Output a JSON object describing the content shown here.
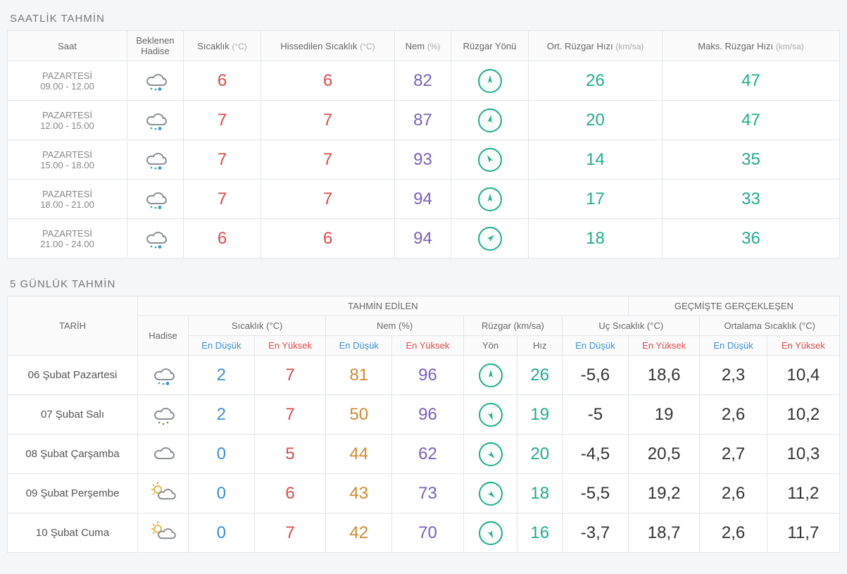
{
  "colors": {
    "red": "#e24a4a",
    "purple": "#7a5fbf",
    "teal": "#1fae8f",
    "blue": "#3b8fd6",
    "orange": "#d68a2e",
    "black": "#333333",
    "border": "#e3e5e8"
  },
  "sections": {
    "hourly_title": "SAATLİK TAHMİN",
    "daily_title": "5 GÜNLÜK TAHMİN"
  },
  "hourly": {
    "headers": {
      "time": "Saat",
      "condition": "Beklenen Hadise",
      "temp": "Sıcaklık",
      "temp_unit": "(°C)",
      "feels": "Hissedilen Sıcaklık",
      "feels_unit": "(°C)",
      "humidity": "Nem",
      "humidity_unit": "(%)",
      "wind_dir": "Rüzgar Yönü",
      "wind_avg": "Ort. Rüzgar Hızı",
      "wind_avg_unit": "(km/sa)",
      "wind_max": "Maks. Rüzgar Hızı",
      "wind_max_unit": "(km/sa)"
    },
    "rows": [
      {
        "dow": "PAZARTESİ",
        "hours": "09.00 - 12.00",
        "icon": "sleet",
        "temp": "6",
        "feels": "6",
        "humidity": "82",
        "wind_deg": 0,
        "wind_avg": "26",
        "wind_max": "47"
      },
      {
        "dow": "PAZARTESİ",
        "hours": "12.00 - 15.00",
        "icon": "sleet",
        "temp": "7",
        "feels": "7",
        "humidity": "87",
        "wind_deg": 10,
        "wind_avg": "20",
        "wind_max": "47"
      },
      {
        "dow": "PAZARTESİ",
        "hours": "15.00 - 18.00",
        "icon": "sleet",
        "temp": "7",
        "feels": "7",
        "humidity": "93",
        "wind_deg": 330,
        "wind_avg": "14",
        "wind_max": "35"
      },
      {
        "dow": "PAZARTESİ",
        "hours": "18.00 - 21.00",
        "icon": "sleet",
        "temp": "7",
        "feels": "7",
        "humidity": "94",
        "wind_deg": 0,
        "wind_avg": "17",
        "wind_max": "33"
      },
      {
        "dow": "PAZARTESİ",
        "hours": "21.00 - 24.00",
        "icon": "sleet",
        "temp": "6",
        "feels": "6",
        "humidity": "94",
        "wind_deg": 45,
        "wind_avg": "18",
        "wind_max": "36"
      }
    ]
  },
  "daily": {
    "headers": {
      "date": "TARİH",
      "forecast_group": "TAHMİN EDİLEN",
      "history_group": "GEÇMİŞTE GERÇEKLEŞEN",
      "condition": "Hadise",
      "temp": "Sıcaklık (°C)",
      "humidity": "Nem (%)",
      "wind": "Rüzgar (km/sa)",
      "extreme_temp": "Uç Sıcaklık (°C)",
      "avg_temp": "Ortalama Sıcaklık (°C)",
      "low": "En Düşük",
      "high": "En Yüksek",
      "dir": "Yön",
      "speed": "Hız"
    },
    "rows": [
      {
        "date": "06 Şubat Pazartesi",
        "icon": "sleet",
        "t_low": "2",
        "t_high": "7",
        "h_low": "81",
        "h_high": "96",
        "wind_deg": 0,
        "wind_speed": "26",
        "ext_low": "-5,6",
        "ext_high": "18,6",
        "avg_low": "2,3",
        "avg_high": "10,4"
      },
      {
        "date": "07 Şubat Salı",
        "icon": "rain",
        "t_low": "2",
        "t_high": "7",
        "h_low": "50",
        "h_high": "96",
        "wind_deg": 160,
        "wind_speed": "19",
        "ext_low": "-5",
        "ext_high": "19",
        "avg_low": "2,6",
        "avg_high": "10,2"
      },
      {
        "date": "08 Şubat Çarşamba",
        "icon": "cloudy",
        "t_low": "0",
        "t_high": "5",
        "h_low": "44",
        "h_high": "62",
        "wind_deg": 135,
        "wind_speed": "20",
        "ext_low": "-4,5",
        "ext_high": "20,5",
        "avg_low": "2,7",
        "avg_high": "10,3"
      },
      {
        "date": "09 Şubat Perşembe",
        "icon": "partly-sunny",
        "t_low": "0",
        "t_high": "6",
        "h_low": "43",
        "h_high": "73",
        "wind_deg": 135,
        "wind_speed": "18",
        "ext_low": "-5,5",
        "ext_high": "19,2",
        "avg_low": "2,6",
        "avg_high": "11,2"
      },
      {
        "date": "10 Şubat Cuma",
        "icon": "partly-sunny",
        "t_low": "0",
        "t_high": "7",
        "h_low": "42",
        "h_high": "70",
        "wind_deg": 155,
        "wind_speed": "16",
        "ext_low": "-3,7",
        "ext_high": "18,7",
        "avg_low": "2,6",
        "avg_high": "11,7"
      }
    ]
  }
}
